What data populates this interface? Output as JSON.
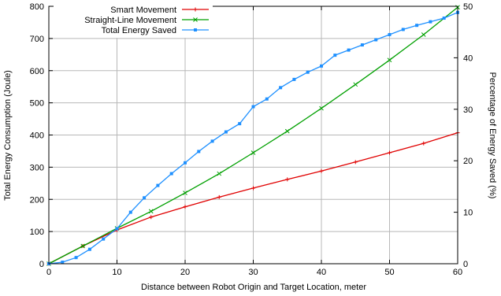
{
  "chart_data": {
    "type": "line",
    "title": "",
    "xlabel": "Distance between Robot Origin and Target Location, meter",
    "ylabel": "Total Energy Consumption (Joule)",
    "y2label": "Percentage of Energy Saved (%)",
    "xlim": [
      0,
      60
    ],
    "ylim": [
      0,
      800
    ],
    "y2lim": [
      0,
      50
    ],
    "xticks": [
      0,
      10,
      20,
      30,
      40,
      50,
      60
    ],
    "yticks": [
      0,
      100,
      200,
      300,
      400,
      500,
      600,
      700,
      800
    ],
    "y2ticks": [
      0,
      10,
      20,
      30,
      40,
      50
    ],
    "grid": true,
    "legend_position": "top-left",
    "series": [
      {
        "name": "Smart Movement",
        "axis": "left",
        "color": "#e00000",
        "marker": "plus",
        "x": [
          0,
          5,
          10,
          15,
          20,
          25,
          30,
          35,
          40,
          45,
          50,
          55,
          60
        ],
        "values": [
          0,
          55,
          105,
          145,
          177,
          207,
          235,
          262,
          288,
          316,
          345,
          374,
          407
        ]
      },
      {
        "name": "Straight-Line Movement",
        "axis": "left",
        "color": "#00a000",
        "marker": "cross",
        "x": [
          0,
          5,
          10,
          15,
          20,
          25,
          30,
          35,
          40,
          45,
          50,
          55,
          60
        ],
        "values": [
          0,
          55,
          110,
          163,
          220,
          280,
          345,
          412,
          483,
          557,
          633,
          712,
          797
        ]
      },
      {
        "name": "Total Energy Saved",
        "axis": "right",
        "color": "#1e90ff",
        "marker": "square",
        "x": [
          0,
          2,
          4,
          6,
          8,
          10,
          12,
          14,
          16,
          18,
          20,
          22,
          24,
          26,
          28,
          30,
          32,
          34,
          36,
          38,
          40,
          42,
          44,
          46,
          48,
          50,
          52,
          54,
          56,
          58,
          60
        ],
        "values": [
          0,
          0.3,
          1.2,
          2.8,
          4.8,
          6.8,
          10.0,
          12.8,
          15.2,
          17.5,
          19.6,
          21.8,
          23.8,
          25.6,
          27.2,
          30.5,
          32.0,
          34.2,
          35.8,
          37.2,
          38.4,
          40.5,
          41.5,
          42.5,
          43.5,
          44.5,
          45.5,
          46.3,
          47.0,
          47.7,
          48.8
        ]
      }
    ]
  }
}
